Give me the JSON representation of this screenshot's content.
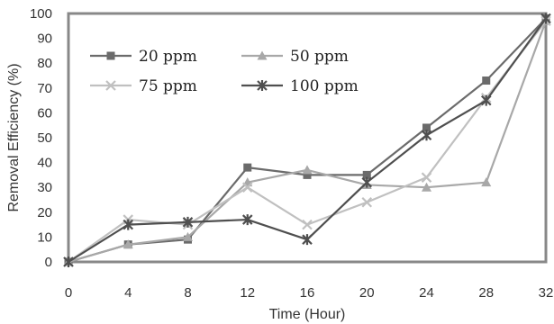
{
  "chart_data": {
    "type": "line",
    "title": "",
    "xlabel": "Time (Hour)",
    "ylabel": "Removal Efficiency (%)",
    "x": [
      0,
      4,
      8,
      12,
      16,
      20,
      24,
      28,
      32
    ],
    "x_ticks": [
      "0",
      "4",
      "8",
      "12",
      "16",
      "20",
      "24",
      "28",
      "32"
    ],
    "y_ticks": [
      "0",
      "10",
      "20",
      "30",
      "40",
      "50",
      "60",
      "70",
      "80",
      "90",
      "100"
    ],
    "xlim": [
      0,
      32
    ],
    "ylim": [
      0,
      100
    ],
    "grid": false,
    "legend_position": "top-left",
    "series": [
      {
        "name": "20 ppm",
        "marker": "square",
        "color": "#6b6b6b",
        "values": [
          0,
          7,
          9,
          38,
          35,
          35,
          54,
          73,
          98
        ]
      },
      {
        "name": "50 ppm",
        "marker": "triangle",
        "color": "#a8a8a8",
        "values": [
          0,
          7,
          10,
          32,
          37,
          31,
          30,
          32,
          97
        ]
      },
      {
        "name": "75 ppm",
        "marker": "x",
        "color": "#c0c0c0",
        "values": [
          0,
          17,
          15,
          30,
          15,
          24,
          34,
          66,
          97
        ]
      },
      {
        "name": "100 ppm",
        "marker": "star",
        "color": "#4f4f4f",
        "values": [
          0,
          15,
          16,
          17,
          9,
          32,
          51,
          65,
          98
        ]
      }
    ]
  }
}
